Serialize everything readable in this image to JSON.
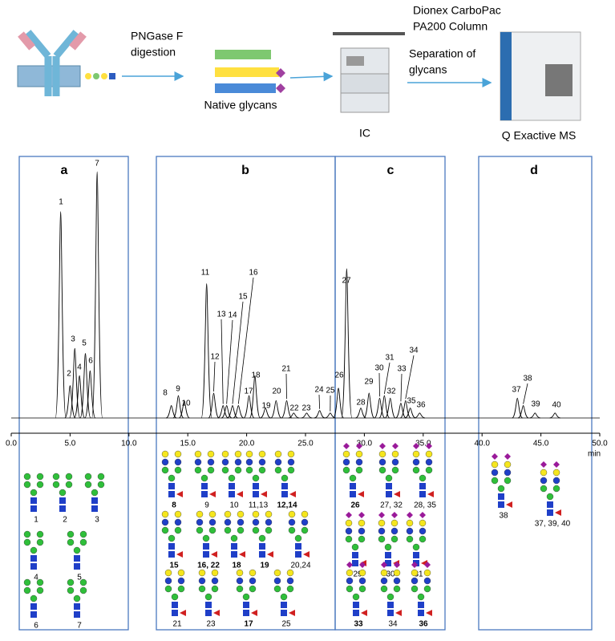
{
  "workflow": {
    "digestion": [
      "PNGase F",
      "digestion"
    ],
    "glycans": "Native glycans",
    "column": [
      "Dionex CarboPac",
      "PA200 Column"
    ],
    "separation": [
      "Separation of",
      "glycans"
    ],
    "ic": "IC",
    "ms": "Q Exactive MS"
  },
  "panels": [
    "a",
    "b",
    "c",
    "d"
  ],
  "chromatogram": {
    "x_label": "min",
    "xlim": [
      0,
      50
    ],
    "xticks": [
      {
        "value": 0,
        "label": "0.0"
      },
      {
        "value": 5,
        "label": "5.0"
      },
      {
        "value": 10,
        "label": "10.0"
      },
      {
        "value": 15,
        "label": "15.0"
      },
      {
        "value": 20,
        "label": "20.0"
      },
      {
        "value": 25,
        "label": "25.0"
      },
      {
        "value": 30,
        "label": "30.0"
      },
      {
        "value": 35,
        "label": "35.0"
      },
      {
        "value": 40,
        "label": "40.0"
      },
      {
        "value": 45,
        "label": "45.0"
      },
      {
        "value": 50,
        "label": "50.0"
      }
    ],
    "peaks": [
      {
        "label": "1",
        "time": 4.2,
        "height": 83
      },
      {
        "label": "2",
        "time": 5.0,
        "height": 13
      },
      {
        "label": "3",
        "time": 5.4,
        "height": 28
      },
      {
        "label": "4",
        "time": 5.8,
        "height": 17
      },
      {
        "label": "5",
        "time": 6.3,
        "height": 26
      },
      {
        "label": "6",
        "time": 6.7,
        "height": 19
      },
      {
        "label": "7",
        "time": 7.3,
        "height": 99
      },
      {
        "label": "8",
        "time": 13.6,
        "height": 5
      },
      {
        "label": "9",
        "time": 14.2,
        "height": 9
      },
      {
        "label": "10",
        "time": 14.7,
        "height": 7
      },
      {
        "label": "11",
        "time": 16.6,
        "height": 54
      },
      {
        "label": "12",
        "time": 17.2,
        "height": 10
      },
      {
        "label": "13",
        "time": 18.0,
        "height": 5
      },
      {
        "label": "14",
        "time": 18.3,
        "height": 5
      },
      {
        "label": "15",
        "time": 18.8,
        "height": 5
      },
      {
        "label": "16",
        "time": 19.3,
        "height": 5
      },
      {
        "label": "17",
        "time": 20.2,
        "height": 9
      },
      {
        "label": "18",
        "time": 20.7,
        "height": 17
      },
      {
        "label": "19",
        "time": 21.6,
        "height": 4
      },
      {
        "label": "20",
        "time": 22.5,
        "height": 7
      },
      {
        "label": "21",
        "time": 23.4,
        "height": 7
      },
      {
        "label": "22",
        "time": 24.0,
        "height": 2
      },
      {
        "label": "23",
        "time": 25.1,
        "height": 2
      },
      {
        "label": "24",
        "time": 26.2,
        "height": 3
      },
      {
        "label": "25",
        "time": 27.1,
        "height": 2
      },
      {
        "label": "26",
        "time": 27.8,
        "height": 12
      },
      {
        "label": "27",
        "time": 28.5,
        "height": 60
      },
      {
        "label": "28",
        "time": 29.7,
        "height": 4
      },
      {
        "label": "29",
        "time": 30.4,
        "height": 10
      },
      {
        "label": "30",
        "time": 31.3,
        "height": 8
      },
      {
        "label": "31",
        "time": 31.7,
        "height": 9
      },
      {
        "label": "32",
        "time": 32.2,
        "height": 8
      },
      {
        "label": "33",
        "time": 33.1,
        "height": 6
      },
      {
        "label": "34",
        "time": 33.5,
        "height": 7
      },
      {
        "label": "35",
        "time": 33.9,
        "height": 4
      },
      {
        "label": "36",
        "time": 34.7,
        "height": 2
      },
      {
        "label": "37",
        "time": 43.0,
        "height": 8
      },
      {
        "label": "38",
        "time": 43.5,
        "height": 5
      },
      {
        "label": "39",
        "time": 44.5,
        "height": 2
      },
      {
        "label": "40",
        "time": 46.2,
        "height": 2
      }
    ]
  },
  "glycans": [
    {
      "label": "1",
      "color": "#000000"
    },
    {
      "label": "2",
      "color": "#000000"
    },
    {
      "label": "3",
      "color": "#000000"
    },
    {
      "label": "4",
      "color": "#000000"
    },
    {
      "label": "5",
      "color": "#000000"
    },
    {
      "label": "6",
      "color": "#000000"
    },
    {
      "label": "7",
      "color": "#000000"
    },
    {
      "label": "8",
      "color": "#e02020"
    },
    {
      "label": "9",
      "color": "#000000"
    },
    {
      "label": "10",
      "color": "#000000"
    },
    {
      "label": "11,13",
      "color": "#000000"
    },
    {
      "label": "12,14",
      "color": "#e02020"
    },
    {
      "label": "15",
      "color": "#e02020"
    },
    {
      "label": "16, 22",
      "color": "#e02020"
    },
    {
      "label": "18",
      "color": "#e02020"
    },
    {
      "label": "19",
      "color": "#e02020"
    },
    {
      "label": "20,24",
      "color": "#000000"
    },
    {
      "label": "21",
      "color": "#000000"
    },
    {
      "label": "23",
      "color": "#000000"
    },
    {
      "label": "17",
      "color": "#e02020"
    },
    {
      "label": "25",
      "color": "#000000"
    },
    {
      "label": "26",
      "color": "#e02020"
    },
    {
      "label": "27, 32",
      "color": "#000000"
    },
    {
      "label": "28, 35",
      "color": "#000000"
    },
    {
      "label": "29",
      "color": "#000000"
    },
    {
      "label": "30",
      "color": "#000000"
    },
    {
      "label": "31",
      "color": "#000000"
    },
    {
      "label": "33",
      "color": "#e02020"
    },
    {
      "label": "34",
      "color": "#000000"
    },
    {
      "label": "36",
      "color": "#e02020"
    },
    {
      "label": "38",
      "color": "#000000"
    },
    {
      "label": "37, 39, 40",
      "color": "#000000"
    }
  ]
}
